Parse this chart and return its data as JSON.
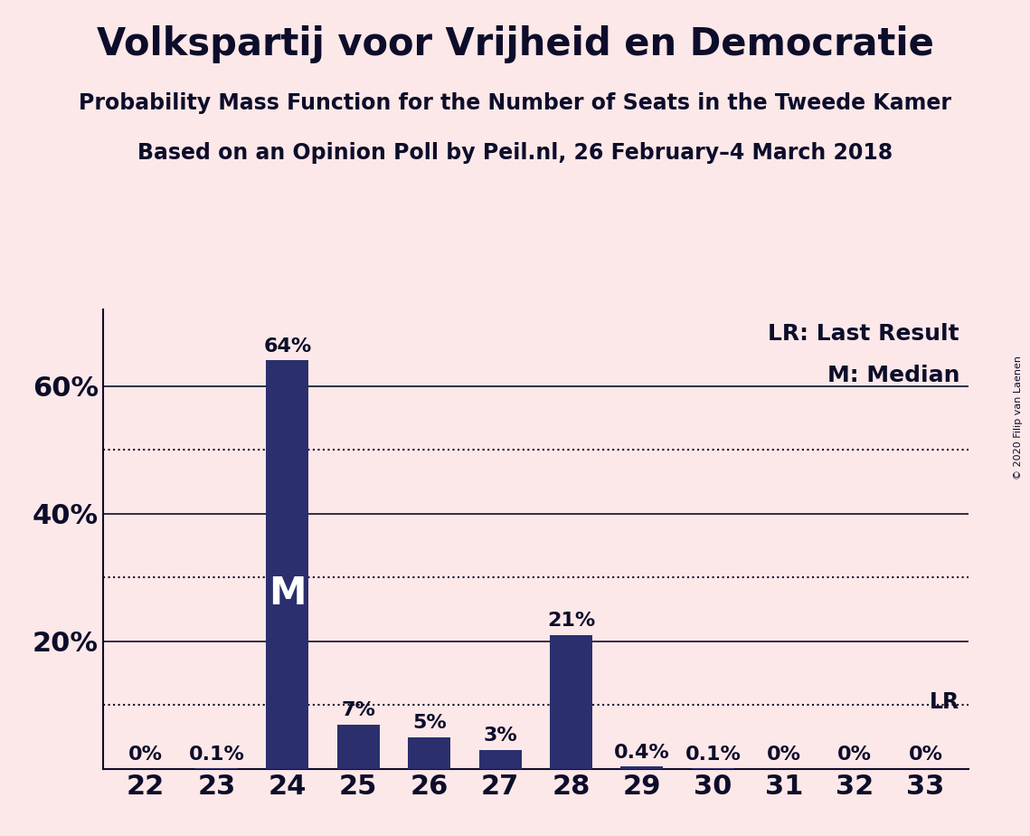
{
  "title": "Volkspartij voor Vrijheid en Democratie",
  "subtitle1": "Probability Mass Function for the Number of Seats in the Tweede Kamer",
  "subtitle2": "Based on an Opinion Poll by Peil.nl, 26 February–4 March 2018",
  "copyright": "© 2020 Filip van Laenen",
  "categories": [
    22,
    23,
    24,
    25,
    26,
    27,
    28,
    29,
    30,
    31,
    32,
    33
  ],
  "values": [
    0.0,
    0.1,
    64.0,
    7.0,
    5.0,
    3.0,
    21.0,
    0.4,
    0.1,
    0.0,
    0.0,
    0.0
  ],
  "labels": [
    "0%",
    "0.1%",
    "64%",
    "7%",
    "5%",
    "3%",
    "21%",
    "0.4%",
    "0.1%",
    "0%",
    "0%",
    "0%"
  ],
  "bar_color": "#2b2f6e",
  "background_color": "#fce8e8",
  "text_color": "#0d0d2b",
  "median_seat": 24,
  "lr_seat": 33,
  "yticks": [
    0,
    20,
    40,
    60
  ],
  "ytick_labels": [
    "",
    "20%",
    "40%",
    "60%"
  ],
  "ylim": [
    0,
    72
  ],
  "solid_lines": [
    20,
    40,
    60
  ],
  "dotted_lines": [
    10,
    30,
    50
  ],
  "legend_lr": "LR: Last Result",
  "legend_m": "M: Median"
}
